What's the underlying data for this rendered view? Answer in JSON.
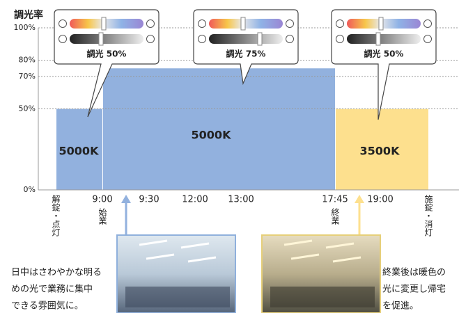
{
  "chart_data": {
    "type": "step",
    "y_title": "調光率",
    "ylim": [
      0,
      100
    ],
    "yticks": [
      {
        "value": 0,
        "label": "0%"
      },
      {
        "value": 50,
        "label": "50%"
      },
      {
        "value": 70,
        "label": "70%"
      },
      {
        "value": 80,
        "label": "80%"
      },
      {
        "value": 100,
        "label": "100%"
      }
    ],
    "grid": true,
    "categories": [
      {
        "label": "解錠・点灯",
        "vertical": true
      },
      {
        "label": "9:00",
        "note": "始業"
      },
      {
        "label": "9:30"
      },
      {
        "label": "12:00"
      },
      {
        "label": "13:00"
      },
      {
        "label": "17:45",
        "note": "終業"
      },
      {
        "label": "19:00"
      },
      {
        "label": "施錠・消灯",
        "vertical": true
      }
    ],
    "segments": [
      {
        "from": "解錠・点灯",
        "to": "9:00",
        "value": 50,
        "value_label": "調光 50%",
        "color_temp": "5000K",
        "color": "#92b1de"
      },
      {
        "from": "9:00",
        "to": "17:45",
        "value": 75,
        "value_label": "調光 75%",
        "color_temp": "5000K",
        "color": "#92b1de"
      },
      {
        "from": "17:45",
        "to": "施錠・消灯",
        "value": 50,
        "value_label": "調光 50%",
        "color_temp": "3500K",
        "color": "#fde08e"
      }
    ],
    "captions": [
      {
        "lines": [
          "日中はさわやかな明る",
          "めの光で業務に集中",
          "できる雰囲気に。"
        ]
      },
      {
        "lines": [
          "終業後は暖色の",
          "光に変更し帰宅",
          "を促進。"
        ]
      }
    ]
  }
}
